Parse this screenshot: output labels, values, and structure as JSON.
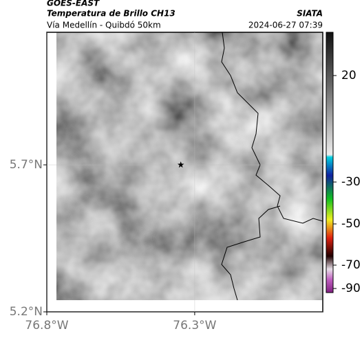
{
  "header": {
    "satellite": "GOES-EAST",
    "title": "Temperatura de Brillo CH13",
    "source": "SIATA",
    "subtitle": "Vía Medellín - Quibdó 50km",
    "timestamp": "2024-06-27 07:39"
  },
  "map": {
    "lon_range": [
      -76.8,
      -75.867
    ],
    "lat_range": [
      5.2,
      6.151
    ],
    "lat_ticks": [
      {
        "value": 5.7,
        "label": "5.7°N"
      },
      {
        "value": 5.2,
        "label": "5.2°N"
      }
    ],
    "lon_ticks": [
      {
        "value": -76.8,
        "label": "76.8°W"
      },
      {
        "value": -76.3,
        "label": "76.3°W"
      }
    ],
    "marker": {
      "lon": -76.347,
      "lat": 5.7
    }
  },
  "colorbar": {
    "ticks": [
      20,
      -30,
      -50,
      -70,
      -90
    ]
  }
}
